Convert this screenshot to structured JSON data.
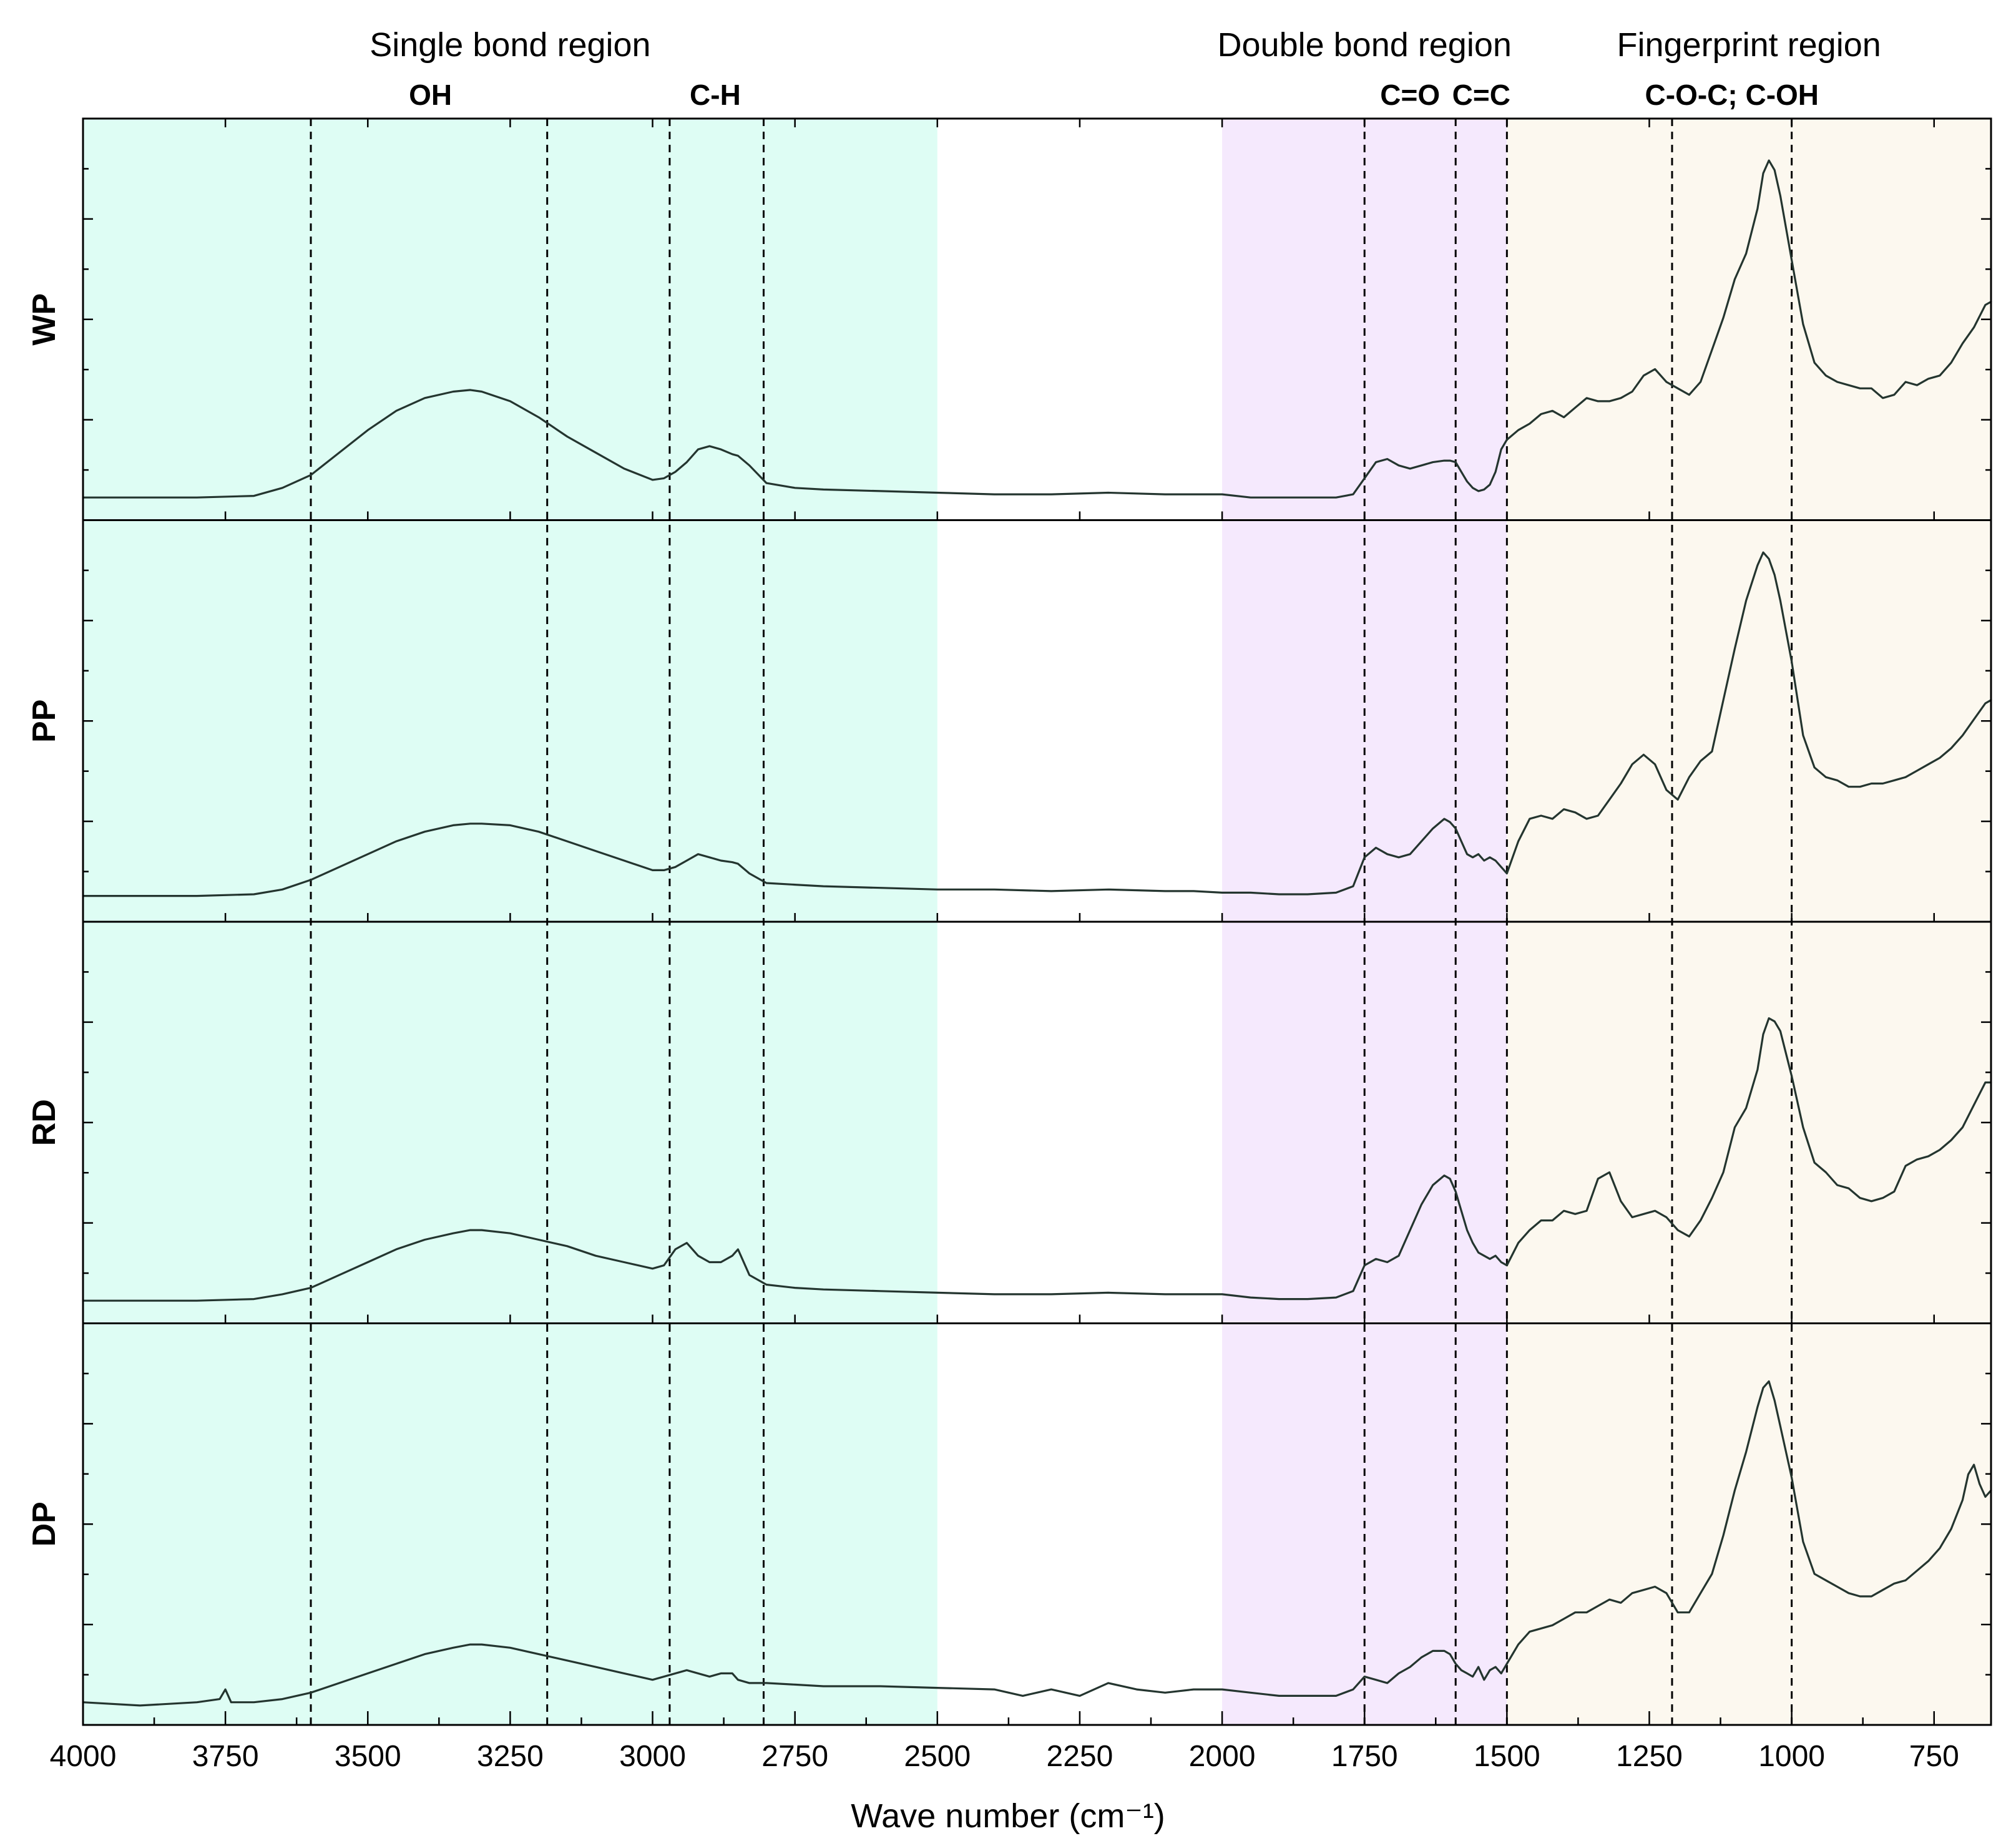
{
  "chart_data": {
    "type": "line",
    "title": "",
    "xlabel": "Wave number (cm⁻¹)",
    "ylabel": "",
    "x_axis": {
      "reversed": true,
      "xlim": [
        4000,
        650
      ],
      "ticks": [
        4000,
        3750,
        3500,
        3250,
        3000,
        2750,
        2500,
        2250,
        2000,
        1750,
        1500,
        1250,
        1000,
        750
      ]
    },
    "grid": false,
    "legend": "none",
    "panels": [
      {
        "name": "WP",
        "ylim": [
          0,
          1.15
        ],
        "x": [
          4000,
          3900,
          3800,
          3700,
          3650,
          3600,
          3550,
          3500,
          3450,
          3400,
          3350,
          3320,
          3300,
          3250,
          3200,
          3150,
          3100,
          3050,
          3000,
          2980,
          2960,
          2940,
          2920,
          2900,
          2880,
          2860,
          2850,
          2830,
          2800,
          2750,
          2700,
          2600,
          2500,
          2400,
          2300,
          2200,
          2100,
          2050,
          2000,
          1950,
          1900,
          1850,
          1800,
          1770,
          1750,
          1730,
          1710,
          1690,
          1670,
          1650,
          1630,
          1610,
          1600,
          1590,
          1580,
          1570,
          1560,
          1550,
          1540,
          1530,
          1520,
          1510,
          1500,
          1480,
          1460,
          1440,
          1420,
          1400,
          1380,
          1360,
          1340,
          1320,
          1300,
          1280,
          1260,
          1240,
          1220,
          1200,
          1180,
          1160,
          1140,
          1120,
          1100,
          1080,
          1060,
          1050,
          1040,
          1030,
          1020,
          1000,
          980,
          960,
          940,
          920,
          900,
          880,
          860,
          840,
          820,
          800,
          780,
          760,
          740,
          720,
          700,
          680,
          660,
          650
        ],
        "y": [
          0.02,
          0.02,
          0.02,
          0.025,
          0.05,
          0.09,
          0.16,
          0.23,
          0.29,
          0.33,
          0.35,
          0.355,
          0.35,
          0.32,
          0.27,
          0.21,
          0.16,
          0.11,
          0.075,
          0.08,
          0.1,
          0.13,
          0.17,
          0.18,
          0.17,
          0.155,
          0.15,
          0.12,
          0.065,
          0.05,
          0.045,
          0.04,
          0.035,
          0.03,
          0.03,
          0.035,
          0.03,
          0.03,
          0.03,
          0.02,
          0.02,
          0.02,
          0.02,
          0.03,
          0.08,
          0.13,
          0.14,
          0.12,
          0.11,
          0.12,
          0.13,
          0.135,
          0.135,
          0.13,
          0.1,
          0.07,
          0.05,
          0.04,
          0.045,
          0.06,
          0.1,
          0.17,
          0.2,
          0.23,
          0.25,
          0.28,
          0.29,
          0.27,
          0.3,
          0.33,
          0.32,
          0.32,
          0.33,
          0.35,
          0.4,
          0.42,
          0.38,
          0.36,
          0.34,
          0.38,
          0.48,
          0.58,
          0.7,
          0.78,
          0.92,
          1.03,
          1.07,
          1.04,
          0.96,
          0.76,
          0.56,
          0.44,
          0.4,
          0.38,
          0.37,
          0.36,
          0.36,
          0.33,
          0.34,
          0.38,
          0.37,
          0.39,
          0.4,
          0.44,
          0.5,
          0.55,
          0.62,
          0.63
        ]
      },
      {
        "name": "PP",
        "ylim": [
          0,
          1.15
        ],
        "x": [
          4000,
          3900,
          3800,
          3700,
          3650,
          3600,
          3550,
          3500,
          3450,
          3400,
          3350,
          3320,
          3300,
          3250,
          3200,
          3150,
          3100,
          3050,
          3000,
          2980,
          2960,
          2940,
          2920,
          2900,
          2880,
          2860,
          2850,
          2830,
          2800,
          2750,
          2700,
          2600,
          2500,
          2400,
          2300,
          2200,
          2100,
          2050,
          2000,
          1950,
          1900,
          1850,
          1800,
          1770,
          1750,
          1730,
          1710,
          1690,
          1670,
          1650,
          1630,
          1610,
          1600,
          1590,
          1580,
          1570,
          1560,
          1550,
          1540,
          1530,
          1520,
          1510,
          1500,
          1480,
          1460,
          1440,
          1420,
          1400,
          1380,
          1360,
          1340,
          1320,
          1300,
          1280,
          1260,
          1240,
          1220,
          1200,
          1180,
          1160,
          1140,
          1120,
          1100,
          1080,
          1060,
          1050,
          1040,
          1030,
          1020,
          1000,
          980,
          960,
          940,
          920,
          900,
          880,
          860,
          840,
          820,
          800,
          780,
          760,
          740,
          720,
          700,
          680,
          660,
          650
        ],
        "y": [
          0.03,
          0.03,
          0.03,
          0.035,
          0.05,
          0.08,
          0.12,
          0.16,
          0.2,
          0.23,
          0.25,
          0.255,
          0.255,
          0.25,
          0.23,
          0.2,
          0.17,
          0.14,
          0.11,
          0.11,
          0.12,
          0.14,
          0.16,
          0.15,
          0.14,
          0.135,
          0.13,
          0.1,
          0.07,
          0.065,
          0.06,
          0.055,
          0.05,
          0.05,
          0.045,
          0.05,
          0.045,
          0.045,
          0.04,
          0.04,
          0.035,
          0.035,
          0.04,
          0.06,
          0.15,
          0.18,
          0.16,
          0.15,
          0.16,
          0.2,
          0.24,
          0.27,
          0.26,
          0.24,
          0.2,
          0.16,
          0.15,
          0.16,
          0.14,
          0.15,
          0.14,
          0.12,
          0.1,
          0.2,
          0.27,
          0.28,
          0.27,
          0.3,
          0.29,
          0.27,
          0.28,
          0.33,
          0.38,
          0.44,
          0.47,
          0.44,
          0.36,
          0.33,
          0.4,
          0.45,
          0.48,
          0.64,
          0.8,
          0.95,
          1.06,
          1.1,
          1.08,
          1.03,
          0.95,
          0.76,
          0.53,
          0.43,
          0.4,
          0.39,
          0.37,
          0.37,
          0.38,
          0.38,
          0.39,
          0.4,
          0.42,
          0.44,
          0.46,
          0.49,
          0.53,
          0.58,
          0.63,
          0.64
        ]
      },
      {
        "name": "RD",
        "ylim": [
          0,
          1.15
        ],
        "x": [
          4000,
          3900,
          3800,
          3700,
          3650,
          3600,
          3550,
          3500,
          3450,
          3400,
          3350,
          3320,
          3300,
          3250,
          3200,
          3150,
          3100,
          3050,
          3000,
          2980,
          2960,
          2940,
          2920,
          2900,
          2880,
          2860,
          2850,
          2830,
          2800,
          2750,
          2700,
          2600,
          2500,
          2400,
          2300,
          2200,
          2100,
          2050,
          2000,
          1950,
          1900,
          1850,
          1800,
          1770,
          1750,
          1730,
          1710,
          1690,
          1670,
          1650,
          1630,
          1610,
          1600,
          1590,
          1580,
          1570,
          1560,
          1550,
          1540,
          1530,
          1520,
          1510,
          1500,
          1480,
          1460,
          1440,
          1420,
          1400,
          1380,
          1360,
          1340,
          1320,
          1300,
          1280,
          1260,
          1240,
          1220,
          1200,
          1180,
          1160,
          1140,
          1120,
          1100,
          1080,
          1060,
          1050,
          1040,
          1030,
          1020,
          1000,
          980,
          960,
          940,
          920,
          900,
          880,
          860,
          840,
          820,
          800,
          780,
          760,
          740,
          720,
          700,
          680,
          660,
          650
        ],
        "y": [
          0.02,
          0.02,
          0.02,
          0.025,
          0.04,
          0.06,
          0.1,
          0.14,
          0.18,
          0.21,
          0.23,
          0.24,
          0.24,
          0.23,
          0.21,
          0.19,
          0.16,
          0.14,
          0.12,
          0.13,
          0.18,
          0.2,
          0.16,
          0.14,
          0.14,
          0.16,
          0.18,
          0.1,
          0.07,
          0.06,
          0.055,
          0.05,
          0.045,
          0.04,
          0.04,
          0.045,
          0.04,
          0.04,
          0.04,
          0.03,
          0.025,
          0.025,
          0.03,
          0.05,
          0.13,
          0.15,
          0.14,
          0.16,
          0.24,
          0.32,
          0.38,
          0.41,
          0.4,
          0.36,
          0.3,
          0.24,
          0.2,
          0.17,
          0.16,
          0.15,
          0.16,
          0.14,
          0.13,
          0.2,
          0.24,
          0.27,
          0.27,
          0.3,
          0.29,
          0.3,
          0.4,
          0.42,
          0.33,
          0.28,
          0.29,
          0.3,
          0.28,
          0.24,
          0.22,
          0.27,
          0.34,
          0.42,
          0.56,
          0.62,
          0.74,
          0.85,
          0.9,
          0.89,
          0.86,
          0.72,
          0.56,
          0.45,
          0.42,
          0.38,
          0.37,
          0.34,
          0.33,
          0.34,
          0.36,
          0.44,
          0.46,
          0.47,
          0.49,
          0.52,
          0.56,
          0.63,
          0.7,
          0.7
        ]
      },
      {
        "name": "DP",
        "ylim": [
          0,
          1.15
        ],
        "x": [
          4000,
          3900,
          3800,
          3760,
          3750,
          3740,
          3700,
          3650,
          3600,
          3550,
          3500,
          3450,
          3400,
          3350,
          3320,
          3300,
          3250,
          3200,
          3150,
          3100,
          3050,
          3000,
          2980,
          2960,
          2940,
          2920,
          2900,
          2880,
          2860,
          2850,
          2830,
          2800,
          2750,
          2700,
          2600,
          2500,
          2400,
          2350,
          2300,
          2250,
          2200,
          2150,
          2100,
          2050,
          2000,
          1950,
          1900,
          1850,
          1800,
          1770,
          1750,
          1730,
          1710,
          1690,
          1670,
          1650,
          1630,
          1610,
          1600,
          1590,
          1580,
          1570,
          1560,
          1550,
          1540,
          1530,
          1520,
          1510,
          1500,
          1480,
          1460,
          1440,
          1420,
          1400,
          1380,
          1360,
          1340,
          1320,
          1300,
          1280,
          1260,
          1240,
          1220,
          1200,
          1180,
          1160,
          1140,
          1120,
          1100,
          1080,
          1060,
          1050,
          1040,
          1030,
          1020,
          1000,
          980,
          960,
          940,
          920,
          900,
          880,
          860,
          840,
          820,
          800,
          780,
          760,
          740,
          720,
          700,
          690,
          680,
          670,
          660,
          650
        ],
        "y": [
          0.02,
          0.01,
          0.02,
          0.03,
          0.06,
          0.02,
          0.02,
          0.03,
          0.05,
          0.08,
          0.11,
          0.14,
          0.17,
          0.19,
          0.2,
          0.2,
          0.19,
          0.17,
          0.15,
          0.13,
          0.11,
          0.09,
          0.1,
          0.11,
          0.12,
          0.11,
          0.1,
          0.11,
          0.11,
          0.09,
          0.08,
          0.08,
          0.075,
          0.07,
          0.07,
          0.065,
          0.06,
          0.04,
          0.06,
          0.04,
          0.08,
          0.06,
          0.05,
          0.06,
          0.06,
          0.05,
          0.04,
          0.04,
          0.04,
          0.06,
          0.1,
          0.09,
          0.08,
          0.11,
          0.13,
          0.16,
          0.18,
          0.18,
          0.17,
          0.14,
          0.12,
          0.11,
          0.1,
          0.13,
          0.09,
          0.12,
          0.13,
          0.11,
          0.14,
          0.2,
          0.24,
          0.25,
          0.26,
          0.28,
          0.3,
          0.3,
          0.32,
          0.34,
          0.33,
          0.36,
          0.37,
          0.38,
          0.36,
          0.3,
          0.3,
          0.36,
          0.42,
          0.54,
          0.68,
          0.8,
          0.94,
          1.0,
          1.02,
          0.96,
          0.88,
          0.72,
          0.52,
          0.42,
          0.4,
          0.38,
          0.36,
          0.35,
          0.35,
          0.37,
          0.39,
          0.4,
          0.43,
          0.46,
          0.5,
          0.56,
          0.65,
          0.73,
          0.76,
          0.7,
          0.66,
          0.68
        ]
      }
    ],
    "regions": [
      {
        "name": "Single bond region",
        "x_range": [
          4000,
          2500
        ],
        "color": "#defdf4"
      },
      {
        "name": "Double bond region",
        "x_range": [
          2000,
          1500
        ],
        "color": "#f5e9fd"
      },
      {
        "name": "Fingerprint region",
        "x_range": [
          1500,
          650
        ],
        "color": "#fcf8ef"
      }
    ],
    "bond_labels": [
      {
        "label": "OH",
        "x": 3390
      },
      {
        "label": "C-H",
        "x": 2890
      },
      {
        "label": "C=O",
        "x": 1670
      },
      {
        "label": "C=C",
        "x": 1545
      },
      {
        "label": "C-O-C; C-OH",
        "x": 1105
      }
    ],
    "dashed_lines": [
      3600,
      3185,
      2970,
      2805,
      1750,
      1590,
      1500,
      1210,
      1000
    ],
    "line_colors": [
      "#24352f",
      "#2b2b2b"
    ]
  }
}
